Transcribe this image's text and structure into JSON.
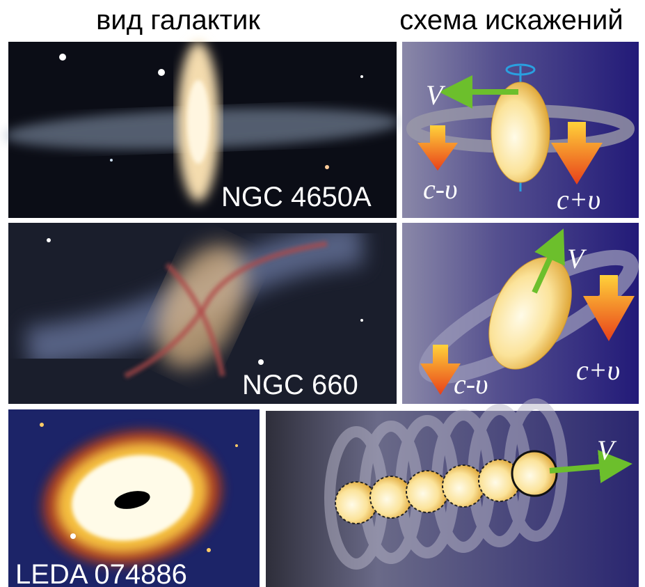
{
  "headers": {
    "left": "вид галактик",
    "right": "схема искажений"
  },
  "panels": [
    {
      "label": "NGC 4650A",
      "scheme": {
        "velocity": "V",
        "approaching": "c-υ",
        "receding": "c+υ"
      }
    },
    {
      "label": "NGC 660",
      "scheme": {
        "velocity": "V",
        "approaching": "c-υ",
        "receding": "c+υ"
      }
    },
    {
      "label": "LEDA 074886",
      "scheme": {
        "velocity": "V"
      }
    }
  ]
}
